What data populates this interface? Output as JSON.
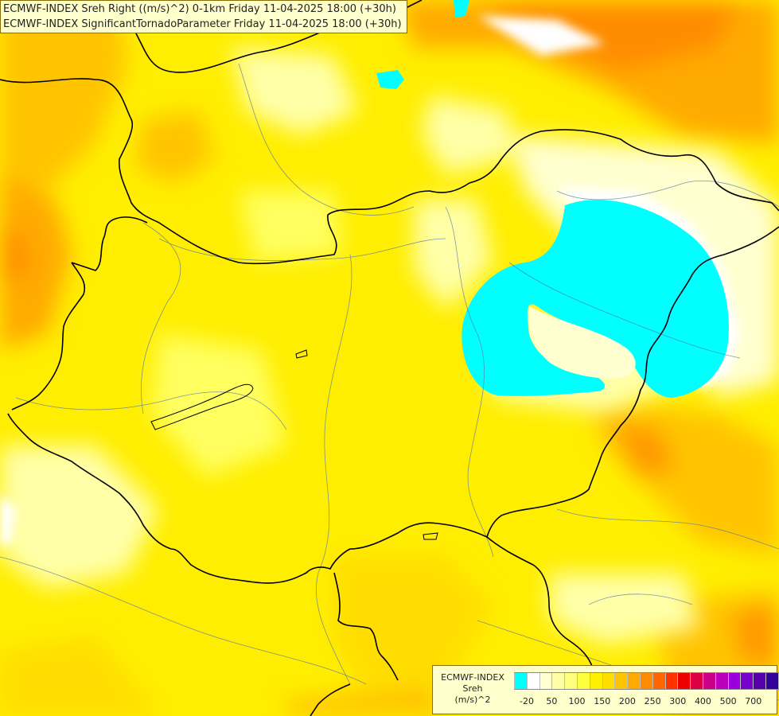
{
  "titles": {
    "line1": "ECMWF-INDEX Sreh Right ((m/s)^2) 0-1km Friday 11-04-2025 18:00 (+30h)",
    "line2": "ECMWF-INDEX SignificantTornadoParameter Friday 11-04-2025 18:00 (+30h)"
  },
  "legend": {
    "title_line1": "ECMWF-INDEX",
    "title_line2": "Sreh",
    "title_line3": "(m/s)^2",
    "colors": [
      "#00ffff",
      "#ffffff",
      "#ffffd0",
      "#ffffa8",
      "#ffff80",
      "#ffff40",
      "#ffee00",
      "#ffdd00",
      "#ffc400",
      "#ffaa00",
      "#ff8c00",
      "#ff6600",
      "#ff3300",
      "#ee0000",
      "#dd0044",
      "#cc0088",
      "#bb00bb",
      "#9900dd",
      "#7700cc",
      "#5500aa",
      "#330099",
      "#000080"
    ],
    "ticks": [
      {
        "label": "-20",
        "pos": 0.05
      },
      {
        "label": "50",
        "pos": 0.148
      },
      {
        "label": "100",
        "pos": 0.247
      },
      {
        "label": "150",
        "pos": 0.346
      },
      {
        "label": "200",
        "pos": 0.445
      },
      {
        "label": "250",
        "pos": 0.544
      },
      {
        "label": "300",
        "pos": 0.643
      },
      {
        "label": "400",
        "pos": 0.742
      },
      {
        "label": "500",
        "pos": 0.841
      },
      {
        "label": "700",
        "pos": 0.94
      }
    ]
  }
}
